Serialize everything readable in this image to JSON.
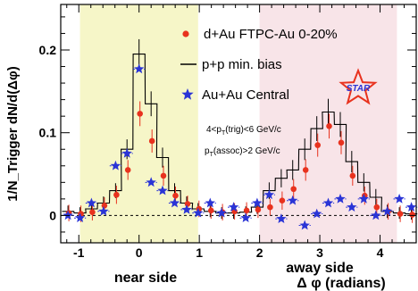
{
  "chart_data": {
    "type": "scatter",
    "title": "",
    "xlabel": "Δ φ (radians)",
    "ylabel": "1/N_Trigger dN/d(Δφ)",
    "xlim": [
      -1.3,
      4.6
    ],
    "ylim": [
      -0.033,
      0.255
    ],
    "x_ticks": [
      -1,
      0,
      1,
      2,
      3,
      4
    ],
    "y_ticks": [
      0,
      0.1,
      0.2
    ],
    "y_tick_labels": [
      "0",
      "0.1",
      "0.2"
    ],
    "grid": false,
    "legend_position": "top-center",
    "regions": [
      {
        "label": "near side",
        "x_start": -0.98,
        "x_end": 0.98,
        "color": "#f6f6c8"
      },
      {
        "label": "away side",
        "x_start": 2.0,
        "x_end": 4.28,
        "color": "#f8e4e8"
      }
    ],
    "annotations": {
      "trig_cut": {
        "main": "4<p",
        "sub": "T",
        "rest": "(trig)<6 GeV/c"
      },
      "assoc_cut": {
        "main": "p",
        "sub": "T",
        "rest": "(assoc)>2 GeV/c"
      },
      "logo": "STAR"
    },
    "series": [
      {
        "name": "d+Au FTPC-Au 0-20%",
        "marker": "circle",
        "color": "#e8321e",
        "x": [
          -1.18,
          -0.98,
          -0.79,
          -0.59,
          -0.39,
          -0.2,
          0.0,
          0.2,
          0.39,
          0.59,
          0.79,
          0.98,
          1.18,
          1.37,
          1.57,
          1.77,
          1.96,
          2.16,
          2.36,
          2.55,
          2.75,
          2.95,
          3.14,
          3.34,
          3.53,
          3.73,
          3.93,
          4.12,
          4.32,
          4.52
        ],
        "y": [
          0.003,
          0.002,
          0.004,
          0.012,
          0.025,
          0.055,
          0.123,
          0.09,
          0.048,
          0.024,
          0.014,
          0.008,
          0.006,
          0.004,
          0.005,
          0.006,
          0.007,
          0.01,
          0.018,
          0.032,
          0.055,
          0.085,
          0.108,
          0.088,
          0.048,
          0.024,
          0.01,
          0.005,
          0.002,
          0.001
        ],
        "errors": [
          0.01,
          0.01,
          0.01,
          0.01,
          0.011,
          0.012,
          0.015,
          0.014,
          0.012,
          0.011,
          0.01,
          0.01,
          0.01,
          0.01,
          0.01,
          0.01,
          0.01,
          0.01,
          0.011,
          0.012,
          0.013,
          0.014,
          0.015,
          0.014,
          0.012,
          0.011,
          0.01,
          0.01,
          0.01,
          0.01
        ]
      },
      {
        "name": "p+p min. bias",
        "marker": "step",
        "color": "#000000",
        "x": [
          -1.18,
          -0.98,
          -0.79,
          -0.59,
          -0.39,
          -0.2,
          0.0,
          0.2,
          0.39,
          0.59,
          0.79,
          0.98,
          1.18,
          1.37,
          1.57,
          1.77,
          1.96,
          2.16,
          2.36,
          2.55,
          2.75,
          2.95,
          3.14,
          3.34,
          3.53,
          3.73,
          3.93,
          4.12,
          4.32,
          4.52
        ],
        "y": [
          0.005,
          0.003,
          0.008,
          0.015,
          0.03,
          0.08,
          0.195,
          0.135,
          0.07,
          0.03,
          0.015,
          0.008,
          0.005,
          0.003,
          0.003,
          0.004,
          0.01,
          0.03,
          0.045,
          0.055,
          0.08,
          0.105,
          0.125,
          0.11,
          0.065,
          0.04,
          0.022,
          0.005,
          0.003,
          0.002
        ],
        "errors": [
          0.007,
          0.007,
          0.007,
          0.008,
          0.009,
          0.012,
          0.018,
          0.015,
          0.012,
          0.009,
          0.008,
          0.007,
          0.007,
          0.007,
          0.007,
          0.007,
          0.008,
          0.01,
          0.011,
          0.012,
          0.013,
          0.015,
          0.016,
          0.015,
          0.013,
          0.011,
          0.01,
          0.008,
          0.007,
          0.007
        ]
      },
      {
        "name": "Au+Au Central",
        "marker": "star",
        "color": "#2a34d6",
        "x": [
          -1.18,
          -0.98,
          -0.79,
          -0.59,
          -0.39,
          -0.2,
          0.0,
          0.2,
          0.39,
          0.59,
          0.79,
          0.98,
          1.18,
          1.37,
          1.57,
          1.77,
          1.96,
          2.16,
          2.36,
          2.55,
          2.75,
          2.95,
          3.14,
          3.34,
          3.53,
          3.73,
          3.93,
          4.12,
          4.32,
          4.52
        ],
        "y": [
          0.0,
          -0.003,
          0.015,
          0.005,
          0.06,
          0.075,
          0.177,
          0.04,
          0.03,
          0.015,
          0.007,
          0.003,
          0.015,
          0.003,
          0.01,
          -0.003,
          0.015,
          0.025,
          -0.004,
          0.018,
          -0.012,
          0.002,
          0.015,
          0.02,
          0.01,
          0.02,
          0.0,
          0.005,
          0.02,
          0.01
        ],
        "errors": [
          0.008,
          0.008,
          0.008,
          0.008,
          0.01,
          0.011,
          0.014,
          0.01,
          0.009,
          0.008,
          0.008,
          0.008,
          0.008,
          0.008,
          0.008,
          0.008,
          0.008,
          0.008,
          0.008,
          0.008,
          0.008,
          0.008,
          0.008,
          0.008,
          0.008,
          0.008,
          0.008,
          0.008,
          0.008,
          0.008
        ]
      }
    ]
  }
}
